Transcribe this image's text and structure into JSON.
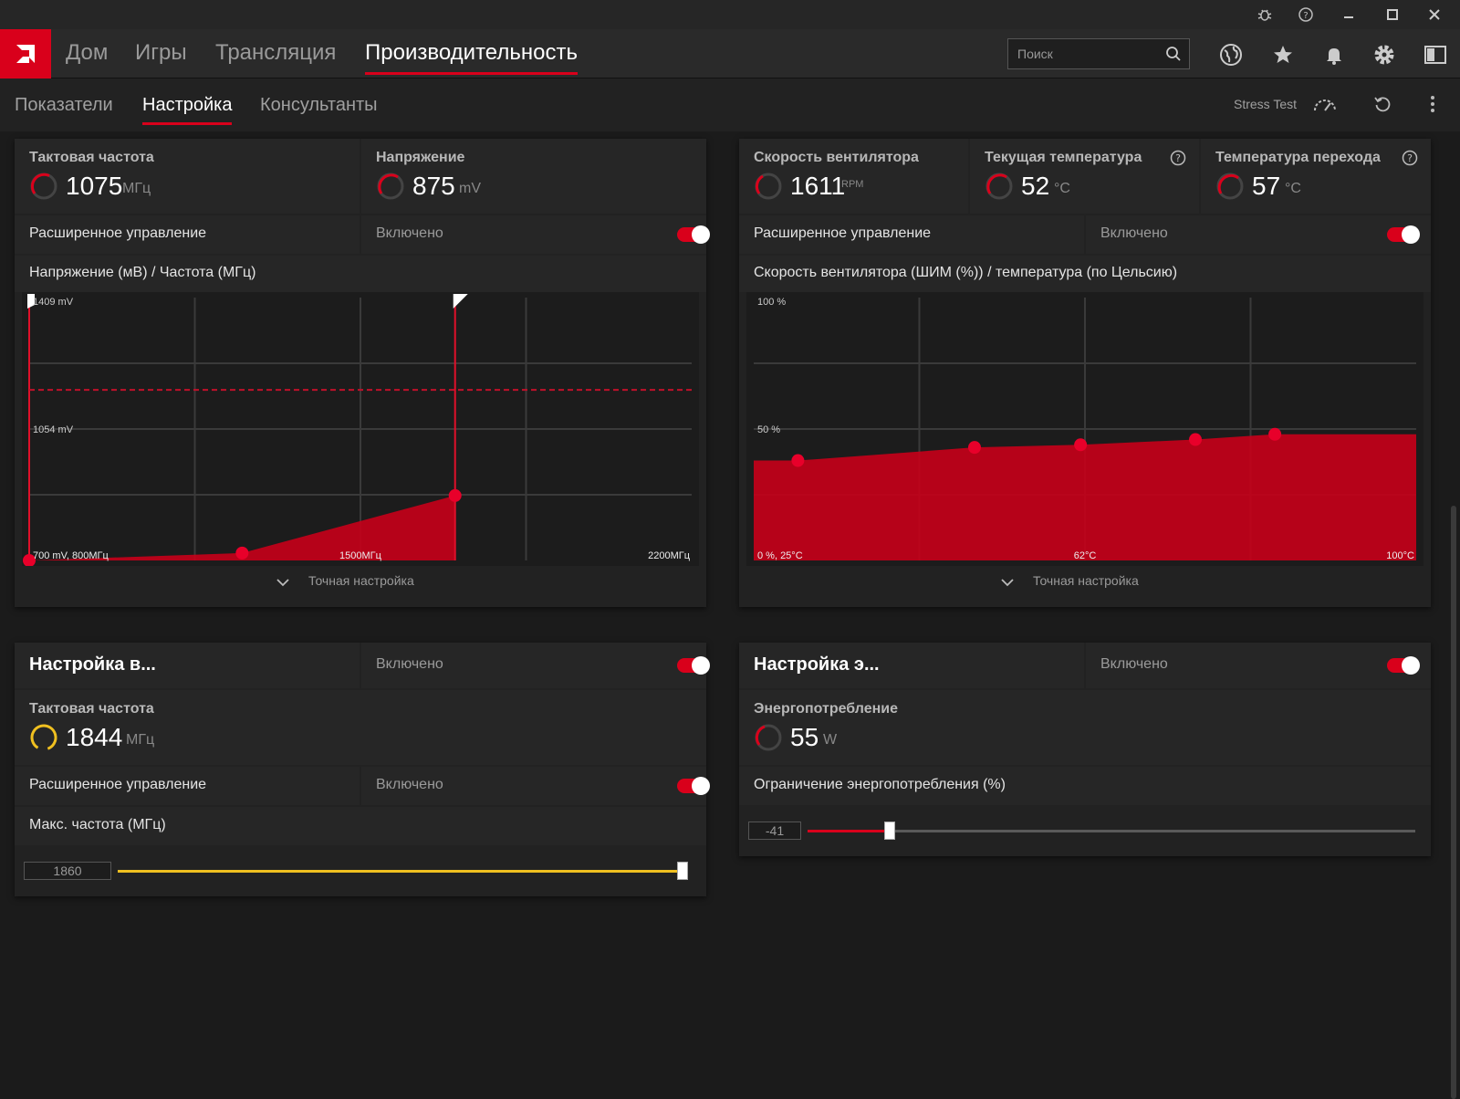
{
  "nav": {
    "tabs": [
      "Дом",
      "Игры",
      "Трансляция",
      "Производительность"
    ],
    "active_tab": "Производительность",
    "search_placeholder": "Поиск"
  },
  "subnav": {
    "tabs": [
      "Показатели",
      "Настройка",
      "Консультанты"
    ],
    "active_tab": "Настройка",
    "stress_test": "Stress Test"
  },
  "gpu_panel": {
    "clock": {
      "label": "Тактовая частота",
      "value": "1075",
      "unit": "МГц"
    },
    "voltage": {
      "label": "Напряжение",
      "value": "875",
      "unit": "mV"
    },
    "advanced": {
      "label": "Расширенное управление",
      "state": "Включено"
    },
    "chart_title": "Напряжение (мВ) / Частота (МГц)",
    "fine_tune": "Точная настройка"
  },
  "fan_panel": {
    "fan_speed": {
      "label": "Скорость вентилятора",
      "value": "1611",
      "unit": "RPM"
    },
    "temp": {
      "label": "Текущая температура",
      "value": "52",
      "unit": "°C"
    },
    "junction": {
      "label": "Температура перехода",
      "value": "57",
      "unit": "°C"
    },
    "advanced": {
      "label": "Расширенное управление",
      "state": "Включено"
    },
    "chart_title": "Скорость вентилятора (ШИМ (%)) / температура (по Цельсию)",
    "fine_tune": "Точная настройка"
  },
  "vram_panel": {
    "title": "Настройка в...",
    "state": "Включено",
    "clock": {
      "label": "Тактовая частота",
      "value": "1844",
      "unit": "МГц"
    },
    "advanced": {
      "label": "Расширенное управление",
      "state": "Включено"
    },
    "max_label": "Макс. частота (МГц)",
    "slider_value": "1860",
    "slider_fraction": 0.99
  },
  "power_panel": {
    "title": "Настройка э...",
    "state": "Включено",
    "power": {
      "label": "Энергопотребление",
      "value": "55",
      "unit": "W"
    },
    "limit_label": "Ограничение энергопотребления (%)",
    "slider_value": "-41",
    "slider_fraction": 0.135
  },
  "chart_data": [
    {
      "type": "area",
      "title": "Напряжение (мВ) / Частота (МГц)",
      "x_tick_labels": [
        "700 mV, 800МГц",
        "1500МГц",
        "2200МГц"
      ],
      "y_tick_labels": [
        "1409 mV",
        "1054 mV"
      ],
      "xlim": [
        800,
        2200
      ],
      "ylim": [
        700,
        1409
      ],
      "points": [
        {
          "x": 800,
          "y": 700
        },
        {
          "x": 1250,
          "y": 720
        },
        {
          "x": 1700,
          "y": 875
        }
      ],
      "freq_limit": 1700,
      "voltage_limit": 1160,
      "color": "#c8001a"
    },
    {
      "type": "area",
      "title": "Скорость вентилятора (ШИМ (%)) / температура (по Цельсию)",
      "x_tick_labels": [
        "0 %, 25°C",
        "62°C",
        "100°C"
      ],
      "y_tick_labels": [
        "100 %",
        "50 %"
      ],
      "xlim": [
        25,
        100
      ],
      "ylim": [
        0,
        100
      ],
      "points": [
        {
          "x": 30,
          "y": 38
        },
        {
          "x": 50,
          "y": 43
        },
        {
          "x": 62,
          "y": 44
        },
        {
          "x": 75,
          "y": 46
        },
        {
          "x": 84,
          "y": 48
        }
      ],
      "color": "#c8001a"
    }
  ]
}
